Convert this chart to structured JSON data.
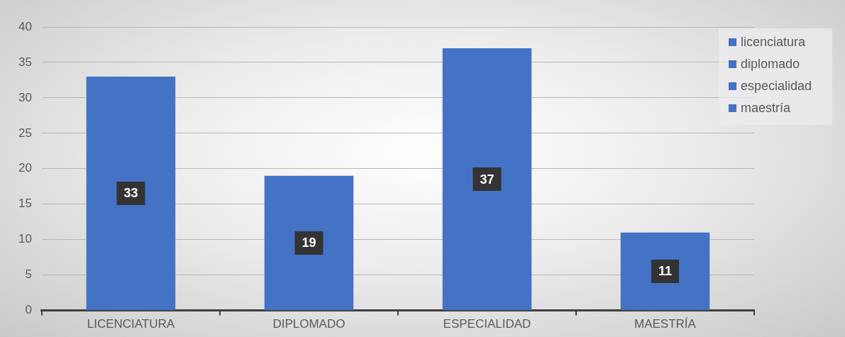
{
  "chart_data": {
    "type": "bar",
    "categories": [
      "LICENCIATURA",
      "DIPLOMADO",
      "ESPECIALIDAD",
      "MAESTRÍA"
    ],
    "series": [
      {
        "name": "licenciatura",
        "color": "#4472c4",
        "values": [
          33,
          null,
          null,
          null
        ]
      },
      {
        "name": "diplomado",
        "color": "#4472c4",
        "values": [
          null,
          19,
          null,
          null
        ]
      },
      {
        "name": "especialidad",
        "color": "#4472c4",
        "values": [
          null,
          null,
          37,
          null
        ]
      },
      {
        "name": "maestría",
        "color": "#4472c4",
        "values": [
          null,
          null,
          null,
          11
        ]
      }
    ],
    "ylim": [
      0,
      40
    ],
    "yticks": [
      0,
      5,
      10,
      15,
      20,
      25,
      30,
      35,
      40
    ],
    "grid": "y",
    "legend": "top right",
    "data_labels": true
  }
}
